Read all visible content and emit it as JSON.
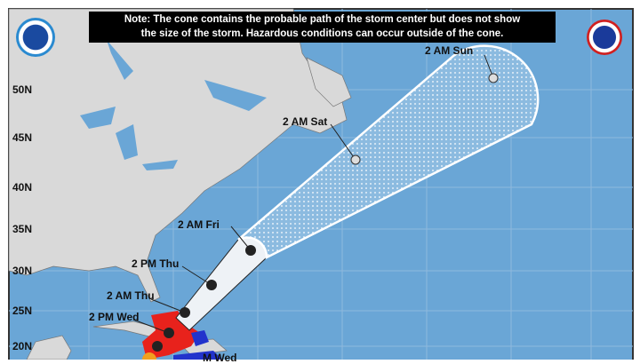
{
  "note": {
    "line1": "Note: The cone contains the probable path of the storm center but does not show",
    "line2": "the size of the storm. Hazardous conditions can occur outside of the cone."
  },
  "latitudes": [
    "50N",
    "45N",
    "40N",
    "35N",
    "30N",
    "25N",
    "20N"
  ],
  "forecast_points": [
    {
      "label": "2 AM Sun",
      "symbol": "S"
    },
    {
      "label": "2 AM Sat",
      "symbol": "H"
    },
    {
      "label": "2 AM Fri",
      "symbol": "H"
    },
    {
      "label": "2 PM Thu",
      "symbol": "H"
    },
    {
      "label": "2 AM Thu",
      "symbol": "H"
    },
    {
      "label": "2 PM Wed",
      "symbol": "H"
    },
    {
      "label": "M Wed",
      "symbol": "M"
    }
  ],
  "logos": {
    "left": "NOAA",
    "right": "National Weather Service"
  },
  "colors": {
    "ocean": "#6aa6d6",
    "land": "#d9d9d9",
    "warning": "#e8221c",
    "watch": "#2233cc",
    "cone_outline": "#ffffff",
    "note_bg": "#000000"
  }
}
